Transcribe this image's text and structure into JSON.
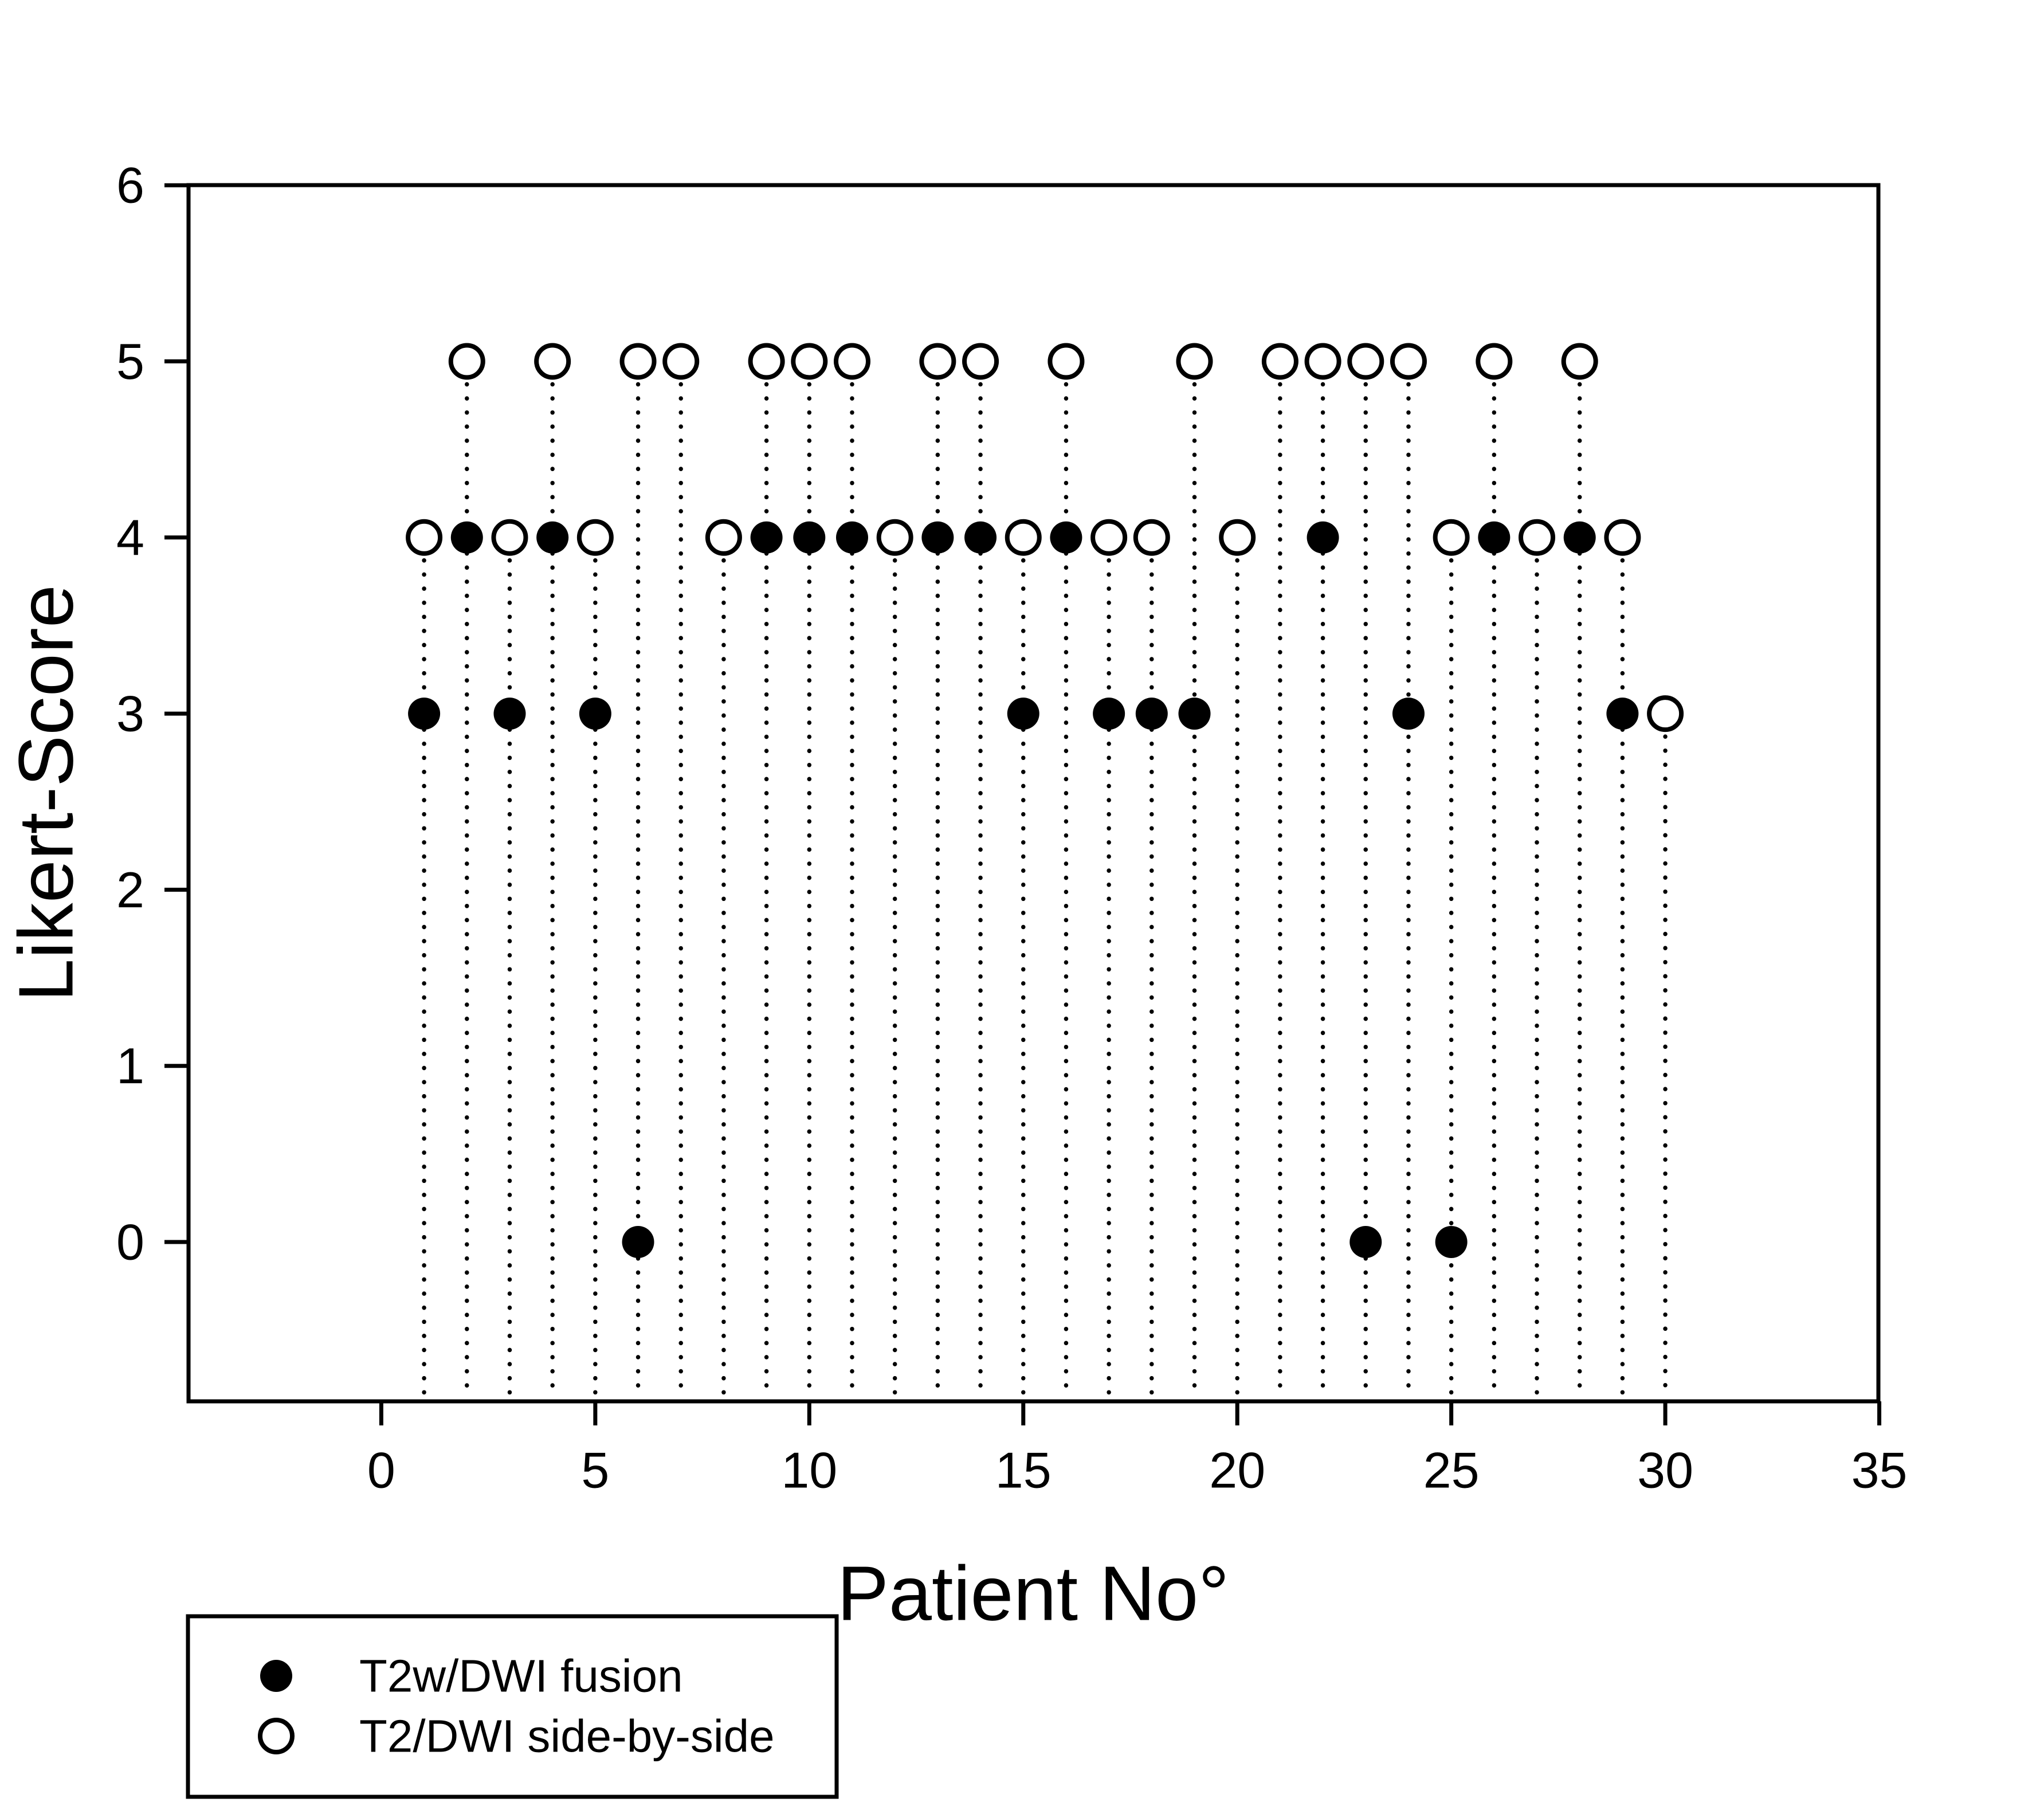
{
  "page": {
    "background": "#ffffff",
    "foreground": "#000000"
  },
  "chart_data": {
    "type": "scatter",
    "title": "",
    "xlabel": "Patient No°",
    "ylabel": "Likert-Score",
    "x_ticks": [
      0,
      5,
      10,
      15,
      20,
      25,
      30,
      35
    ],
    "y_ticks": [
      0,
      1,
      2,
      3,
      4,
      5,
      6
    ],
    "x_range": [
      -4.5,
      35
    ],
    "y_range": [
      -0.9,
      6
    ],
    "grid": "dotted vertical stem line under every patient's markers down to the x-axis",
    "x": [
      1,
      2,
      3,
      4,
      5,
      6,
      7,
      8,
      9,
      10,
      11,
      12,
      13,
      14,
      15,
      16,
      17,
      18,
      19,
      20,
      21,
      22,
      23,
      24,
      25,
      26,
      27,
      28,
      29,
      30
    ],
    "series": [
      {
        "name": "T2w/DWI fusion",
        "marker": "filled-circle",
        "color": "#000000",
        "values": [
          3,
          4,
          3,
          4,
          3,
          0,
          5,
          4,
          4,
          4,
          4,
          4,
          4,
          4,
          3,
          4,
          3,
          3,
          3,
          4,
          5,
          4,
          0,
          3,
          0,
          4,
          4,
          4,
          3,
          3
        ]
      },
      {
        "name": "T2/DWI side-by-side",
        "marker": "open-circle",
        "color": "#000000",
        "values": [
          4,
          5,
          4,
          5,
          4,
          5,
          5,
          4,
          5,
          5,
          5,
          4,
          5,
          5,
          4,
          5,
          4,
          4,
          5,
          4,
          5,
          5,
          5,
          5,
          4,
          5,
          4,
          5,
          4,
          3
        ]
      }
    ],
    "legend_position": "bottom-left, outside plot",
    "occlusion_note": "open circles are drawn on top; where both readings are equal only the open circle is visible"
  },
  "legend": {
    "items": [
      {
        "label": "T2w/DWI fusion",
        "marker": "filled-circle"
      },
      {
        "label": "T2/DWI side-by-side",
        "marker": "open-circle"
      }
    ]
  }
}
